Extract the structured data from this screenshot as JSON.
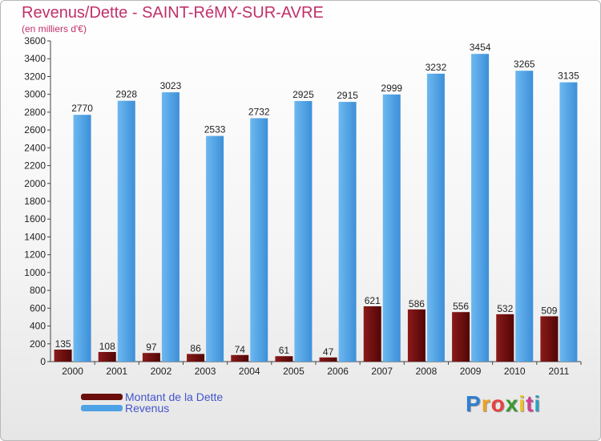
{
  "header": {
    "title": "Revenus/Dette - SAINT-RéMY-SUR-AVRE",
    "subtitle": "(en milliers d'€)"
  },
  "chart_data": {
    "type": "bar",
    "categories": [
      "2000",
      "2001",
      "2002",
      "2003",
      "2004",
      "2005",
      "2006",
      "2007",
      "2008",
      "2009",
      "2010",
      "2011"
    ],
    "series": [
      {
        "name": "Montant de la Dette",
        "color": "#6b0d0d",
        "values": [
          135,
          108,
          97,
          86,
          74,
          61,
          47,
          621,
          586,
          556,
          532,
          509
        ]
      },
      {
        "name": "Revenus",
        "color": "#4ea3e6",
        "values": [
          2770,
          2928,
          3023,
          2533,
          2732,
          2925,
          2915,
          2999,
          3232,
          3454,
          3265,
          3135
        ]
      }
    ],
    "ylim": [
      0,
      3600
    ],
    "yticks": [
      0,
      200,
      400,
      600,
      800,
      1000,
      1200,
      1400,
      1600,
      1800,
      2000,
      2200,
      2400,
      2600,
      2800,
      3000,
      3200,
      3400,
      3600
    ],
    "grid": false,
    "legend_position": "bottom-left"
  },
  "legend": {
    "items": [
      {
        "label": "Montant de la Dette",
        "color": "#6b0d0d"
      },
      {
        "label": "Revenus",
        "color": "#4ea3e6"
      }
    ]
  },
  "logo": {
    "letters": [
      "P",
      "r",
      "o",
      "x",
      "i",
      "t",
      "i"
    ],
    "colors": [
      "#2f7fd0",
      "#f0a020",
      "#e84040",
      "#3a9a30",
      "#f0c020",
      "#d04090",
      "#30a0c0"
    ]
  }
}
